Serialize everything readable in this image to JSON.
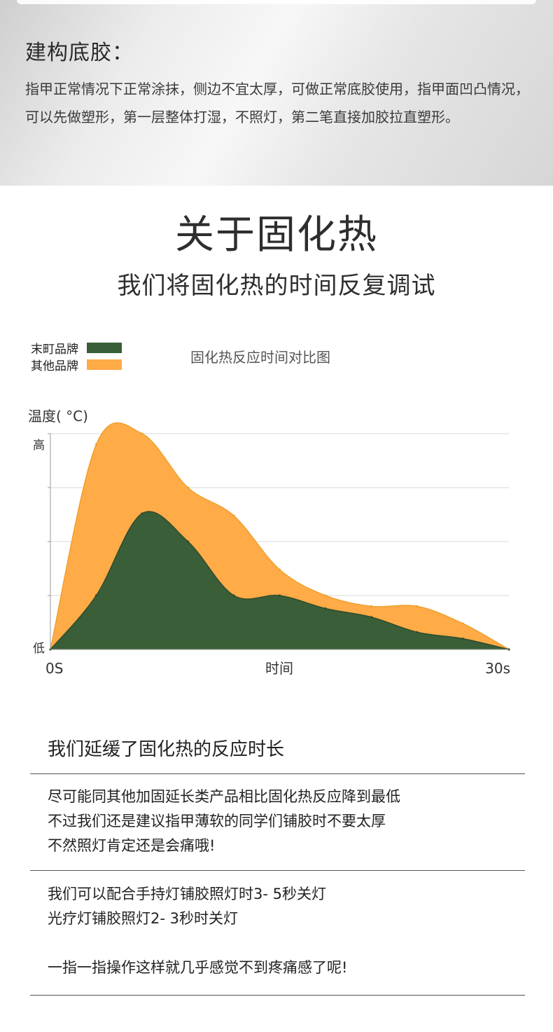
{
  "top": {
    "title": "建构底胶：",
    "body": "指甲正常情况下正常涂抹，侧边不宜太厚，可做正常底胶使用，指甲面凹凸情况，可以先做塑形，第一层整体打湿，不照灯，第二笔直接加胶拉直塑形。"
  },
  "heading": "关于固化热",
  "subheading": "我们将固化热的时间反复调试",
  "colors": {
    "brand": "#3a5e37",
    "other": "#ffab47",
    "other_line": "#f0a030",
    "grid": "#d9d9d9"
  },
  "chart_data": {
    "type": "area",
    "title": "固化热反应时间对比图",
    "ylabel": "温度( °C)",
    "xlabel": "时间",
    "x_tick_labels": [
      "0S",
      "30s"
    ],
    "y_tick_labels": [
      "低",
      "高"
    ],
    "x": [
      0,
      3,
      6,
      9,
      12,
      15,
      18,
      21,
      24,
      27,
      30
    ],
    "xlim": [
      0,
      30
    ],
    "ylim": [
      0,
      100
    ],
    "grid": true,
    "legend_position": "top-left",
    "series": [
      {
        "name": "其他品牌",
        "color": "#ffab47",
        "values": [
          0,
          95,
          100,
          75,
          62,
          37,
          25,
          20,
          20,
          12,
          0
        ]
      },
      {
        "name": "末町品牌",
        "color": "#3a5e37",
        "values": [
          0,
          25,
          63,
          50,
          25,
          25,
          19,
          15,
          8,
          5,
          0
        ]
      }
    ]
  },
  "info": {
    "title": "我们延缓了固化热的反应时长",
    "block1": [
      "尽可能同其他加固延长类产品相比固化热反应降到最低",
      "不过我们还是建议指甲薄软的同学们铺胶时不要太厚",
      "不然照灯肯定还是会痛哦!"
    ],
    "block2": [
      "我们可以配合手持灯铺胶照灯时3- 5秒关灯",
      "光疗灯铺胶照灯2- 3秒时关灯"
    ],
    "closing": "一指一指操作这样就几乎感觉不到疼痛感了呢!"
  }
}
